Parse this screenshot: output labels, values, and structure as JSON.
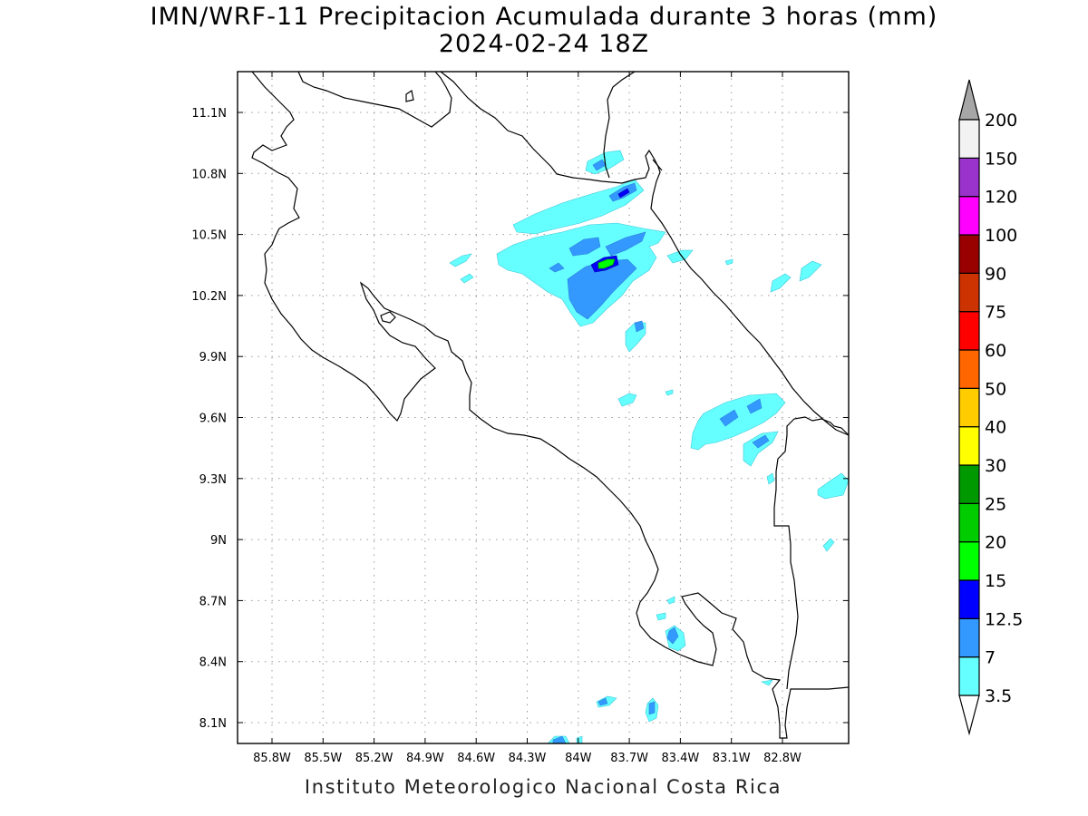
{
  "title": {
    "line1": "IMN/WRF-11 Precipitacion Acumulada durante 3 horas (mm)",
    "line2": "2024-02-24 18Z"
  },
  "footer": "Instituto Meteorologico Nacional Costa Rica",
  "map": {
    "lon_range": [
      -86.0,
      -82.5
    ],
    "lat_range": [
      8.0,
      11.3
    ],
    "lon_ticks": [
      "85.8W",
      "85.5W",
      "85.2W",
      "84.9W",
      "84.6W",
      "84.3W",
      "84W",
      "83.7W",
      "83.4W",
      "83.1W",
      "82.8W"
    ],
    "lat_ticks": [
      "11.1N",
      "10.8N",
      "10.5N",
      "10.2N",
      "9.9N",
      "9.6N",
      "9.3N",
      "9N",
      "8.7N",
      "8.4N",
      "8.1N"
    ],
    "grid": true
  },
  "colorbar": {
    "levels": [
      "3.5",
      "7",
      "12.5",
      "15",
      "20",
      "25",
      "30",
      "40",
      "50",
      "60",
      "75",
      "90",
      "100",
      "120",
      "150",
      "200"
    ],
    "colors": [
      "#66ffff",
      "#3399ff",
      "#0000ff",
      "#00ff00",
      "#00cc00",
      "#009900",
      "#ffff00",
      "#ffcc00",
      "#ff6600",
      "#ff0000",
      "#cc3300",
      "#990000",
      "#ff00ff",
      "#9933cc",
      "#f2f2f2",
      "#a6a6a6"
    ],
    "under_color": "#ffffff",
    "over_color": "#a6a6a6"
  }
}
